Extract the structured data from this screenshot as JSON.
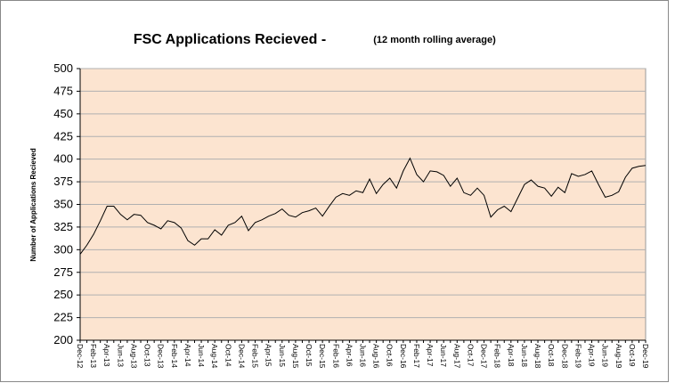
{
  "chart_data": {
    "type": "line",
    "title": "FSC Applications Recieved -",
    "subtitle": "(12 month rolling average)",
    "y_label": "Number of Applications Recieved",
    "categories": [
      "Dec-12",
      null,
      "Feb-13",
      null,
      "Apr-13",
      null,
      "Jun-13",
      null,
      "Aug-13",
      null,
      "Oct-13",
      null,
      "Dec-13",
      null,
      "Feb-14",
      null,
      "Apr-14",
      null,
      "Jun-14",
      null,
      "Aug-14",
      null,
      "Oct-14",
      null,
      "Dec-14",
      null,
      "Feb-15",
      null,
      "Apr-15",
      null,
      "Jun-15",
      null,
      "Aug-15",
      null,
      "Oct-15",
      null,
      "Dec-15",
      null,
      "Feb-16",
      null,
      "Apr-16",
      null,
      "Jun-16",
      null,
      "Aug-16",
      null,
      "Oct-16",
      null,
      "Dec-16",
      null,
      "Feb-17",
      null,
      "Apr-17",
      null,
      "Jun-17",
      null,
      "Aug-17",
      null,
      "Oct-17",
      null,
      "Dec-17",
      null,
      "Feb-18",
      null,
      "Apr-18",
      null,
      "Jun-18",
      null,
      "Aug-18",
      null,
      "Oct-18",
      null,
      "Dec-18",
      null,
      "Feb-19",
      null,
      "Apr-19",
      null,
      "Jun-19",
      null,
      "Aug-19",
      null,
      "Oct-19",
      null,
      "Dec-19"
    ],
    "series": [
      {
        "color": "#000000",
        "values": [
          295,
          305,
          317,
          332,
          348,
          348,
          339,
          333,
          339,
          338,
          330,
          327,
          323,
          332,
          330,
          324,
          310,
          305,
          312,
          312,
          322,
          316,
          327,
          330,
          337,
          321,
          330,
          333,
          337,
          340,
          345,
          338,
          336,
          341,
          343,
          346,
          337,
          348,
          358,
          362,
          360,
          365,
          363,
          378,
          362,
          372,
          379,
          368,
          387,
          401,
          383,
          375,
          387,
          386,
          382,
          370,
          379,
          363,
          360,
          368,
          360,
          336,
          344,
          348,
          342,
          357,
          372,
          377,
          370,
          368,
          359,
          369,
          363,
          384,
          381,
          383,
          387,
          372,
          358,
          360,
          364,
          380,
          390,
          392,
          393
        ]
      }
    ],
    "ylim": [
      200,
      500
    ],
    "yticks": [
      200,
      225,
      250,
      275,
      300,
      325,
      350,
      375,
      400,
      425,
      450,
      475,
      500
    ],
    "grid": true,
    "plot_background": "#fce4d0"
  }
}
